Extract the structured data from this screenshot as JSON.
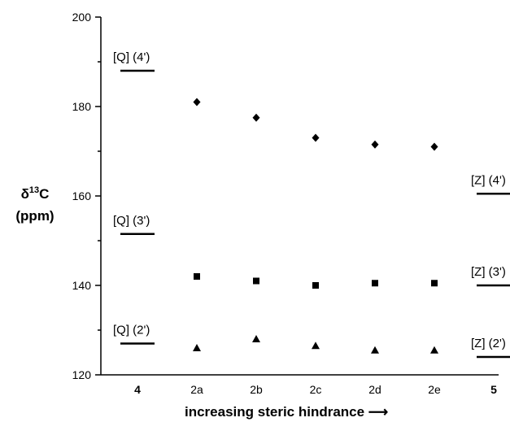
{
  "chart_data": {
    "type": "scatter",
    "ylim": [
      120,
      200
    ],
    "yticks": [
      "120",
      "140",
      "160",
      "180",
      "200"
    ],
    "ylabel": {
      "symbol": "δ",
      "superscript": "13",
      "element": "C",
      "unit": "(ppm)"
    },
    "xlabel": "increasing steric hindrance ⟶",
    "categories": [
      {
        "label": "4",
        "bold": true
      },
      {
        "label": "2a",
        "bold": false
      },
      {
        "label": "2b",
        "bold": false
      },
      {
        "label": "2c",
        "bold": false
      },
      {
        "label": "2d",
        "bold": false
      },
      {
        "label": "2e",
        "bold": false
      },
      {
        "label": "5",
        "bold": true
      }
    ],
    "series": [
      {
        "marker": "diamond",
        "categories": [
          "2a",
          "2b",
          "2c",
          "2d",
          "2e"
        ],
        "values": [
          181,
          177.5,
          173,
          171.5,
          171
        ]
      },
      {
        "marker": "square",
        "categories": [
          "2a",
          "2b",
          "2c",
          "2d",
          "2e"
        ],
        "values": [
          142,
          141,
          140,
          140.5,
          140.5
        ]
      },
      {
        "marker": "triangle",
        "categories": [
          "2a",
          "2b",
          "2c",
          "2d",
          "2e"
        ],
        "values": [
          126,
          128,
          126.5,
          125.5,
          125.5
        ]
      }
    ],
    "reference_levels": [
      {
        "category": "4",
        "label": "[Q] (4')",
        "value": 188
      },
      {
        "category": "4",
        "label": "[Q] (3')",
        "value": 151.5
      },
      {
        "category": "4",
        "label": "[Q] (2')",
        "value": 127
      },
      {
        "category": "5",
        "label": "[Z] (4')",
        "value": 160.5
      },
      {
        "category": "5",
        "label": "[Z] (3')",
        "value": 140
      },
      {
        "category": "5",
        "label": "[Z] (2')",
        "value": 124
      }
    ],
    "grid": false
  }
}
